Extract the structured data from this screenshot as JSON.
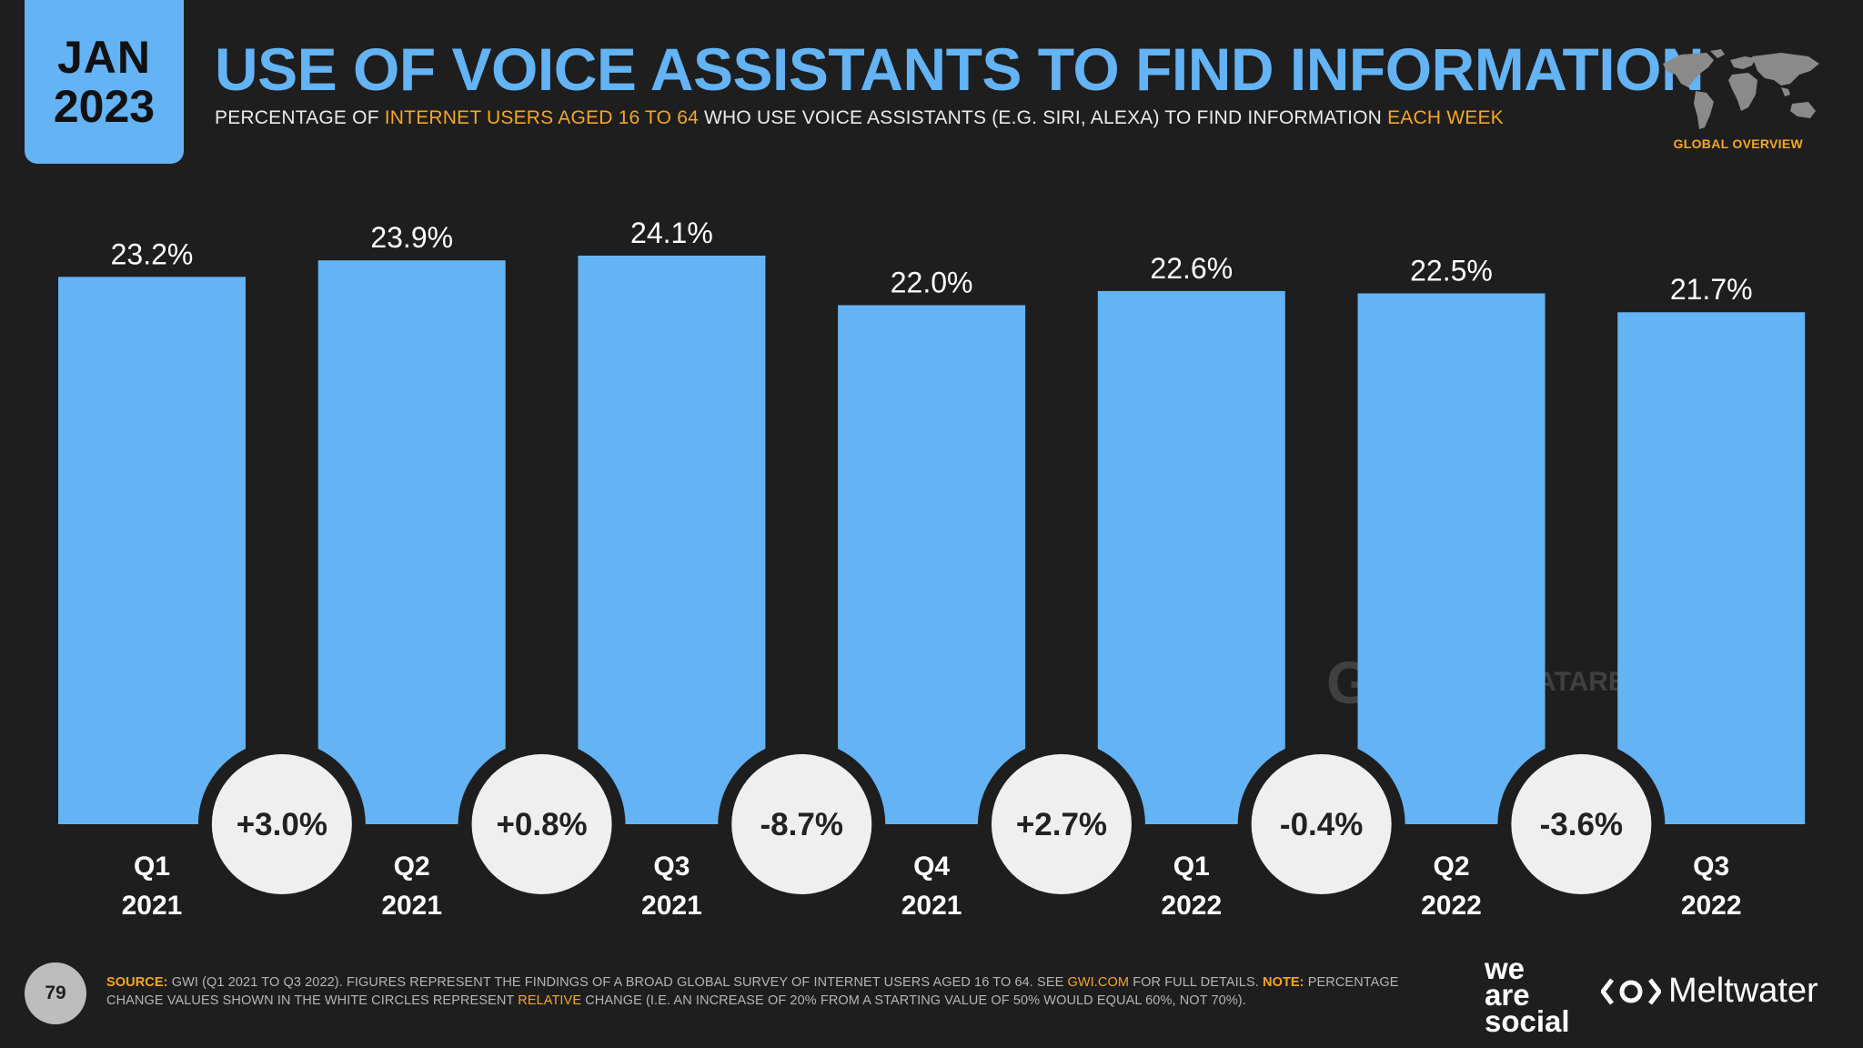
{
  "header": {
    "date_month": "JAN",
    "date_year": "2023",
    "title": "USE OF VOICE ASSISTANTS TO FIND INFORMATION",
    "subtitle_parts": [
      "PERCENTAGE OF ",
      "INTERNET USERS AGED 16 TO 64",
      " WHO USE VOICE ASSISTANTS (E.G. SIRI, ALEXA) TO FIND INFORMATION ",
      "EACH WEEK"
    ],
    "region": "GLOBAL OVERVIEW"
  },
  "watermark": {
    "gwi": "GWI.",
    "datareportal": "DATAREPORTAL"
  },
  "chart_data": {
    "type": "bar",
    "title": "USE OF VOICE ASSISTANTS TO FIND INFORMATION",
    "categories": [
      [
        "Q1",
        "2021"
      ],
      [
        "Q2",
        "2021"
      ],
      [
        "Q3",
        "2021"
      ],
      [
        "Q4",
        "2021"
      ],
      [
        "Q1",
        "2022"
      ],
      [
        "Q2",
        "2022"
      ],
      [
        "Q3",
        "2022"
      ]
    ],
    "values": [
      23.2,
      23.9,
      24.1,
      22.0,
      22.6,
      22.5,
      21.7
    ],
    "value_labels": [
      "23.2%",
      "23.9%",
      "24.1%",
      "22.0%",
      "22.6%",
      "22.5%",
      "21.7%"
    ],
    "changes": [
      "+3.0%",
      "+0.8%",
      "-8.7%",
      "+2.7%",
      "-0.4%",
      "-3.6%"
    ],
    "ylim": [
      0,
      24.1
    ],
    "xlabel": "",
    "ylabel": "",
    "bar_color": "#63b3f5",
    "grid": false
  },
  "footer": {
    "page_number": "79",
    "source_label": "SOURCE:",
    "source_text_1": " GWI (Q1 2021 TO Q3 2022). FIGURES REPRESENT THE FINDINGS OF A BROAD GLOBAL SURVEY OF INTERNET USERS AGED 16 TO 64. SEE ",
    "source_link": "GWI.COM",
    "source_text_2": " FOR FULL DETAILS. ",
    "note_label": "NOTE:",
    "note_text_1": " PERCENTAGE CHANGE VALUES SHOWN IN THE WHITE CIRCLES REPRESENT ",
    "note_relative": "RELATIVE",
    "note_text_2": " CHANGE (I.E. AN INCREASE OF 20% FROM A STARTING VALUE OF 50% WOULD EQUAL 60%, NOT 70%).",
    "brand_1_line1": "we",
    "brand_1_line2": "are",
    "brand_1_line3": "social",
    "brand_2": "Meltwater"
  },
  "colors": {
    "accent": "#63b3f5",
    "highlight": "#f5a623",
    "background": "#1e1e1e"
  }
}
